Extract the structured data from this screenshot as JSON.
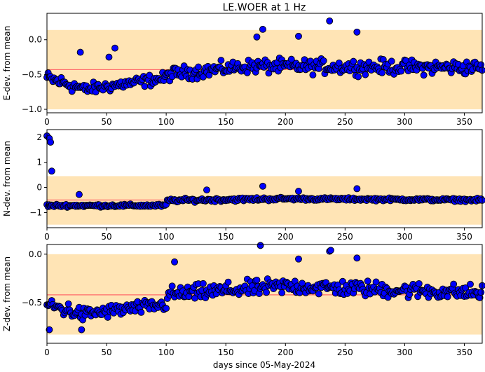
{
  "figure": {
    "title": "LE.WOER at 1 Hz",
    "xlabel": "days since 05-May-2024"
  },
  "colors": {
    "band": "#ffe4b5",
    "mean_line": "#ff6a6a",
    "marker_fill": "#0000ff",
    "marker_edge": "#000000"
  },
  "chart_data": [
    {
      "type": "scatter",
      "name": "E",
      "ylabel": "E-dev. from mean",
      "xlim": [
        0,
        365
      ],
      "ylim": [
        -1.05,
        0.38
      ],
      "yticks": [
        -1.0,
        -0.5,
        0.0
      ],
      "ytick_labels": [
        "−1.0",
        "−0.5",
        "0.0"
      ],
      "xticks": [
        0,
        50,
        100,
        150,
        200,
        250,
        300,
        350
      ],
      "mean": -0.43,
      "band": [
        -1.0,
        0.14
      ],
      "segments": [
        {
          "x0": 0,
          "x1": 30,
          "y0": -0.55,
          "y1": -0.7,
          "spread": 0.14
        },
        {
          "x0": 30,
          "x1": 100,
          "y0": -0.72,
          "y1": -0.55,
          "spread": 0.12
        },
        {
          "x0": 100,
          "x1": 170,
          "y0": -0.5,
          "y1": -0.38,
          "spread": 0.14
        },
        {
          "x0": 170,
          "x1": 365,
          "y0": -0.38,
          "y1": -0.4,
          "spread": 0.15
        }
      ],
      "outliers": [
        [
          237,
          0.27
        ],
        [
          181,
          0.15
        ],
        [
          260,
          0.11
        ],
        [
          211,
          0.05
        ],
        [
          176,
          0.04
        ],
        [
          57,
          -0.12
        ],
        [
          28,
          -0.18
        ],
        [
          52,
          -0.25
        ]
      ]
    },
    {
      "type": "scatter",
      "name": "N",
      "ylabel": "N-dev. from mean",
      "xlim": [
        0,
        365
      ],
      "ylim": [
        -1.6,
        2.3
      ],
      "yticks": [
        -1,
        0,
        1,
        2
      ],
      "ytick_labels": [
        "−1",
        "0",
        "1",
        "2"
      ],
      "xticks": [
        0,
        50,
        100,
        150,
        200,
        250,
        300,
        350
      ],
      "mean": -0.5,
      "band": [
        -1.48,
        0.45
      ],
      "segments": [
        {
          "x0": 0,
          "x1": 100,
          "y0": -0.72,
          "y1": -0.72,
          "spread": 0.08
        },
        {
          "x0": 100,
          "x1": 200,
          "y0": -0.52,
          "y1": -0.45,
          "spread": 0.1
        },
        {
          "x0": 200,
          "x1": 365,
          "y0": -0.45,
          "y1": -0.5,
          "spread": 0.08
        }
      ],
      "outliers": [
        [
          0,
          2.05
        ],
        [
          2,
          1.95
        ],
        [
          3,
          1.8
        ],
        [
          4,
          0.65
        ],
        [
          134,
          -0.1
        ],
        [
          181,
          0.05
        ],
        [
          211,
          -0.15
        ],
        [
          260,
          -0.05
        ],
        [
          27,
          -0.28
        ]
      ]
    },
    {
      "type": "scatter",
      "name": "Z",
      "ylabel": "Z-dev. from mean",
      "xlim": [
        0,
        365
      ],
      "ylim": [
        -0.92,
        0.1
      ],
      "yticks": [
        -0.5,
        0.0
      ],
      "ytick_labels": [
        "−0.5",
        "0.0"
      ],
      "xticks": [
        0,
        50,
        100,
        150,
        200,
        250,
        300,
        350
      ],
      "xtick_labels": [
        "0",
        "50",
        "100",
        "150",
        "200",
        "250",
        "300",
        "350"
      ],
      "mean": -0.42,
      "band": [
        -0.83,
        0.0
      ],
      "segments": [
        {
          "x0": 0,
          "x1": 30,
          "y0": -0.52,
          "y1": -0.62,
          "spread": 0.12
        },
        {
          "x0": 30,
          "x1": 100,
          "y0": -0.62,
          "y1": -0.52,
          "spread": 0.1
        },
        {
          "x0": 100,
          "x1": 200,
          "y0": -0.42,
          "y1": -0.33,
          "spread": 0.12
        },
        {
          "x0": 200,
          "x1": 365,
          "y0": -0.33,
          "y1": -0.4,
          "spread": 0.12
        }
      ],
      "outliers": [
        [
          179,
          0.09
        ],
        [
          237,
          0.03
        ],
        [
          238,
          0.04
        ],
        [
          211,
          -0.05
        ],
        [
          260,
          -0.04
        ],
        [
          107,
          -0.08
        ],
        [
          2,
          -0.78
        ],
        [
          29,
          -0.78
        ]
      ]
    }
  ]
}
